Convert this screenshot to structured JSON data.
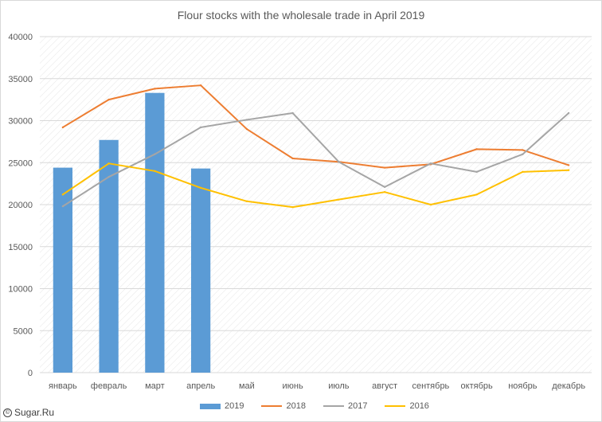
{
  "chart_data": {
    "type": "bar",
    "title": "Flour stocks with the wholesale trade in April 2019",
    "categories": [
      "январь",
      "февраль",
      "март",
      "апрель",
      "май",
      "июнь",
      "июль",
      "август",
      "сентябрь",
      "октябрь",
      "ноябрь",
      "декабрь"
    ],
    "ylim": [
      0,
      40000
    ],
    "yticks": [
      0,
      5000,
      10000,
      15000,
      20000,
      25000,
      30000,
      35000,
      40000
    ],
    "grid": true,
    "legend_position": "bottom",
    "series": [
      {
        "name": "2019",
        "kind": "bar",
        "color": "#5b9bd5",
        "values": [
          24400,
          27700,
          33300,
          24300,
          null,
          null,
          null,
          null,
          null,
          null,
          null,
          null
        ]
      },
      {
        "name": "2018",
        "kind": "line",
        "color": "#ed7d31",
        "values": [
          29200,
          32500,
          33800,
          34200,
          29000,
          25500,
          25100,
          24400,
          24800,
          26600,
          26500,
          24700
        ]
      },
      {
        "name": "2017",
        "kind": "line",
        "color": "#a5a5a5",
        "values": [
          19800,
          23300,
          26000,
          29200,
          30100,
          30900,
          25100,
          22100,
          24900,
          23900,
          26000,
          30900
        ]
      },
      {
        "name": "2016",
        "kind": "line",
        "color": "#ffc000",
        "values": [
          21200,
          24900,
          24000,
          22000,
          20400,
          19700,
          20600,
          21500,
          20000,
          21200,
          23900,
          24100
        ]
      }
    ]
  },
  "source_label": "Sugar.Ru",
  "source_symbol": "©"
}
